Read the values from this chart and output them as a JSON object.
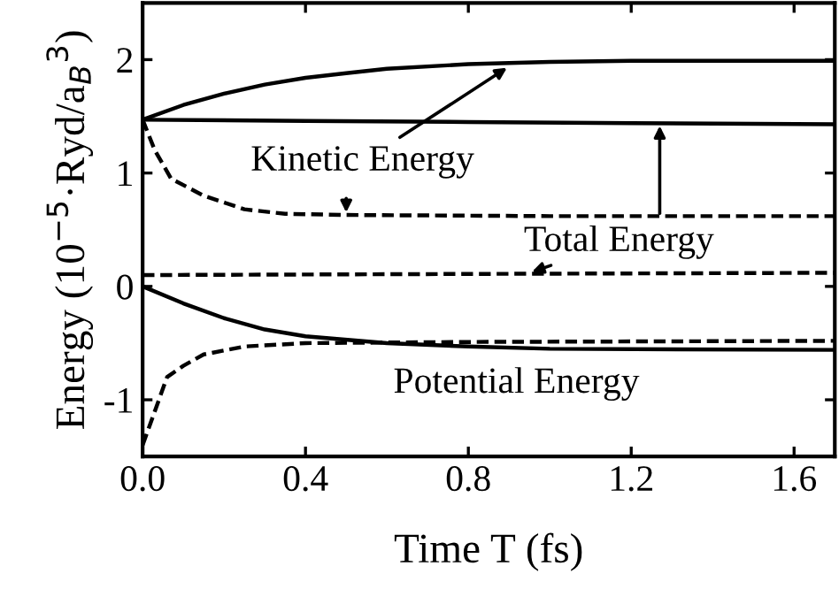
{
  "chart_data": {
    "type": "line",
    "xlabel": "Time T (fs)",
    "ylabel": "Energy (10$^{−5}$·Ryd/a$_{B}$$^{3}$)",
    "xlim": [
      0,
      1.7
    ],
    "ylim": [
      -1.5,
      2.5
    ],
    "xticks": [
      {
        "value": 0,
        "label": "0.0"
      },
      {
        "value": 0.4,
        "label": "0.4"
      },
      {
        "value": 0.8,
        "label": "0.8"
      },
      {
        "value": 1.2,
        "label": "1.2"
      },
      {
        "value": 1.6,
        "label": "1.6"
      }
    ],
    "yticks": [
      -1,
      0,
      1,
      2
    ],
    "grid": false,
    "legend": false,
    "marker": "none",
    "series": [
      {
        "color": "#000000",
        "line_style": "solid",
        "x": [
          0,
          0.1,
          0.2,
          0.3,
          0.4,
          0.5,
          0.6,
          0.8,
          1.0,
          1.2,
          1.7
        ],
        "values": [
          1.47,
          1.6,
          1.7,
          1.78,
          1.84,
          1.88,
          1.92,
          1.96,
          1.98,
          1.99,
          1.99
        ]
      },
      {
        "color": "#000000",
        "line_style": "solid",
        "x": [
          0,
          0.4,
          0.8,
          1.2,
          1.7
        ],
        "values": [
          1.47,
          1.46,
          1.45,
          1.44,
          1.43
        ]
      },
      {
        "color": "#000000",
        "line_style": "dashed",
        "x": [
          0,
          0.03,
          0.07,
          0.15,
          0.25,
          0.35,
          0.5,
          1.0,
          1.7
        ],
        "values": [
          1.47,
          1.2,
          0.95,
          0.8,
          0.68,
          0.64,
          0.63,
          0.62,
          0.62
        ]
      },
      {
        "color": "#000000",
        "line_style": "dashed",
        "x": [
          0,
          0.8,
          1.7
        ],
        "values": [
          0.1,
          0.11,
          0.12
        ]
      },
      {
        "color": "#000000",
        "line_style": "solid",
        "x": [
          0,
          0.1,
          0.2,
          0.3,
          0.4,
          0.6,
          0.8,
          1.0,
          1.7
        ],
        "values": [
          0,
          -0.15,
          -0.28,
          -0.38,
          -0.44,
          -0.5,
          -0.53,
          -0.55,
          -0.56
        ]
      },
      {
        "color": "#000000",
        "line_style": "dashed",
        "x": [
          0,
          0.02,
          0.06,
          0.1,
          0.15,
          0.25,
          0.4,
          0.8,
          1.7
        ],
        "values": [
          -1.4,
          -1.2,
          -0.8,
          -0.7,
          -0.6,
          -0.53,
          -0.5,
          -0.49,
          -0.48
        ]
      }
    ],
    "annotations": [
      {
        "text": "Kinetic Energy",
        "x": 0.9,
        "y": 1.94
      },
      {
        "text": "Total Energy",
        "x": 0.95,
        "y": 0.12
      },
      "Potential Energy"
    ]
  }
}
